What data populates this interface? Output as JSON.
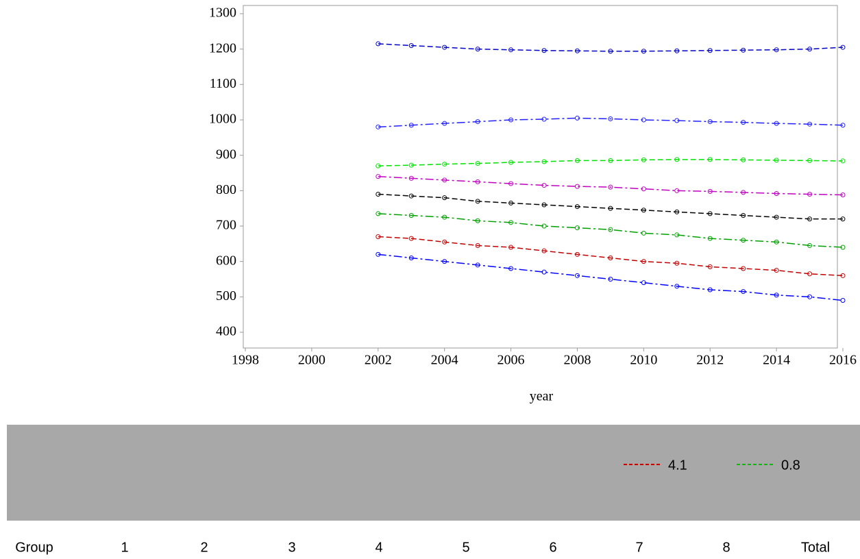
{
  "chart_data": {
    "type": "line",
    "x_label": "year",
    "x": [
      2002,
      2003,
      2004,
      2005,
      2006,
      2007,
      2008,
      2009,
      2010,
      2011,
      2012,
      2013,
      2014,
      2015,
      2016
    ],
    "series": [
      {
        "color": "#0000ff",
        "values": [
          620,
          610,
          600,
          590,
          580,
          570,
          560,
          550,
          540,
          530,
          520,
          515,
          505,
          500,
          490
        ]
      },
      {
        "color": "#c00000",
        "values": [
          670,
          665,
          655,
          645,
          640,
          630,
          620,
          610,
          600,
          595,
          585,
          580,
          575,
          565,
          560
        ]
      },
      {
        "color": "#00a000",
        "values": [
          735,
          730,
          725,
          715,
          710,
          700,
          695,
          690,
          680,
          675,
          665,
          660,
          655,
          645,
          640
        ]
      },
      {
        "color": "#000000",
        "values": [
          790,
          785,
          780,
          770,
          765,
          760,
          755,
          750,
          745,
          740,
          735,
          730,
          725,
          720,
          720
        ]
      },
      {
        "color": "#c000c0",
        "values": [
          840,
          835,
          830,
          825,
          820,
          815,
          812,
          810,
          805,
          800,
          798,
          795,
          792,
          790,
          788
        ]
      },
      {
        "color": "#00e000",
        "values": [
          870,
          872,
          875,
          877,
          880,
          882,
          885,
          885,
          887,
          888,
          888,
          887,
          886,
          885,
          884
        ]
      },
      {
        "color": "#2020ff",
        "values": [
          980,
          985,
          990,
          995,
          1000,
          1002,
          1005,
          1003,
          1000,
          998,
          995,
          993,
          990,
          988,
          985
        ]
      },
      {
        "color": "#0000c0",
        "values": [
          1215,
          1210,
          1205,
          1200,
          1198,
          1196,
          1195,
          1194,
          1194,
          1195,
          1196,
          1197,
          1198,
          1200,
          1205
        ]
      }
    ],
    "xlim": [
      1998,
      2016
    ],
    "xticks": [
      1998,
      2000,
      2002,
      2004,
      2006,
      2008,
      2010,
      2012,
      2014,
      2016
    ],
    "ylim": [
      400,
      1300
    ],
    "yticks": [
      400,
      500,
      600,
      700,
      800,
      900,
      1000,
      1100,
      1200,
      1300
    ],
    "annotations": [
      "4.1",
      "0.8"
    ]
  },
  "table": {
    "header": [
      "Group",
      "1",
      "2",
      "3",
      "4",
      "5",
      "6",
      "7",
      "8",
      "Total"
    ]
  }
}
